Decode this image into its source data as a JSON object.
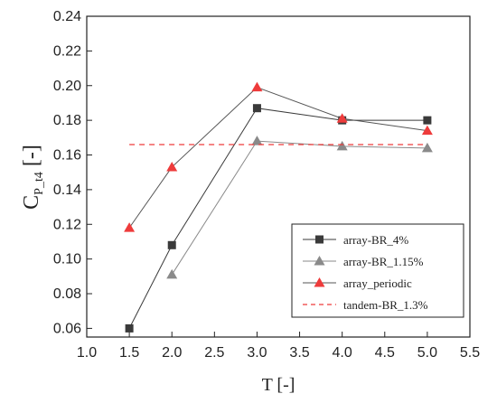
{
  "chart_data": {
    "type": "line",
    "xlabel": "T [-]",
    "ylabel_main": "C",
    "ylabel_sub": "P_t4",
    "ylabel_unit": " [-]",
    "xlim": [
      1.0,
      5.5
    ],
    "ylim": [
      0.055,
      0.24
    ],
    "xticks": [
      "1.0",
      "1.5",
      "2.0",
      "2.5",
      "3.0",
      "3.5",
      "4.0",
      "4.5",
      "5.0",
      "5.5"
    ],
    "yticks": [
      "0.06",
      "0.08",
      "0.10",
      "0.12",
      "0.14",
      "0.16",
      "0.18",
      "0.20",
      "0.22",
      "0.24"
    ],
    "grid": false,
    "legend_position": "bottom-right",
    "series": [
      {
        "name": "array-BR_4%",
        "marker": "square",
        "color": "#3a3a3a",
        "x": [
          1.5,
          2.0,
          3.0,
          4.0,
          5.0
        ],
        "y": [
          0.06,
          0.108,
          0.187,
          0.18,
          0.18
        ]
      },
      {
        "name": "array-BR_1.15%",
        "marker": "triangle",
        "color": "#8a8a8a",
        "x": [
          2.0,
          3.0,
          4.0,
          5.0
        ],
        "y": [
          0.091,
          0.168,
          0.165,
          0.164
        ]
      },
      {
        "name": "array_periodic",
        "marker": "triangle",
        "color": "#ee3b3b",
        "line_color": "#555555",
        "x": [
          1.5,
          2.0,
          3.0,
          4.0,
          5.0
        ],
        "y": [
          0.118,
          0.153,
          0.199,
          0.181,
          0.174
        ]
      },
      {
        "name": "tandem-BR_1.3%",
        "marker": "none",
        "style": "dashed",
        "color": "#ee3b3b",
        "x": [
          1.5,
          5.0
        ],
        "y": [
          0.166,
          0.166
        ]
      }
    ]
  }
}
